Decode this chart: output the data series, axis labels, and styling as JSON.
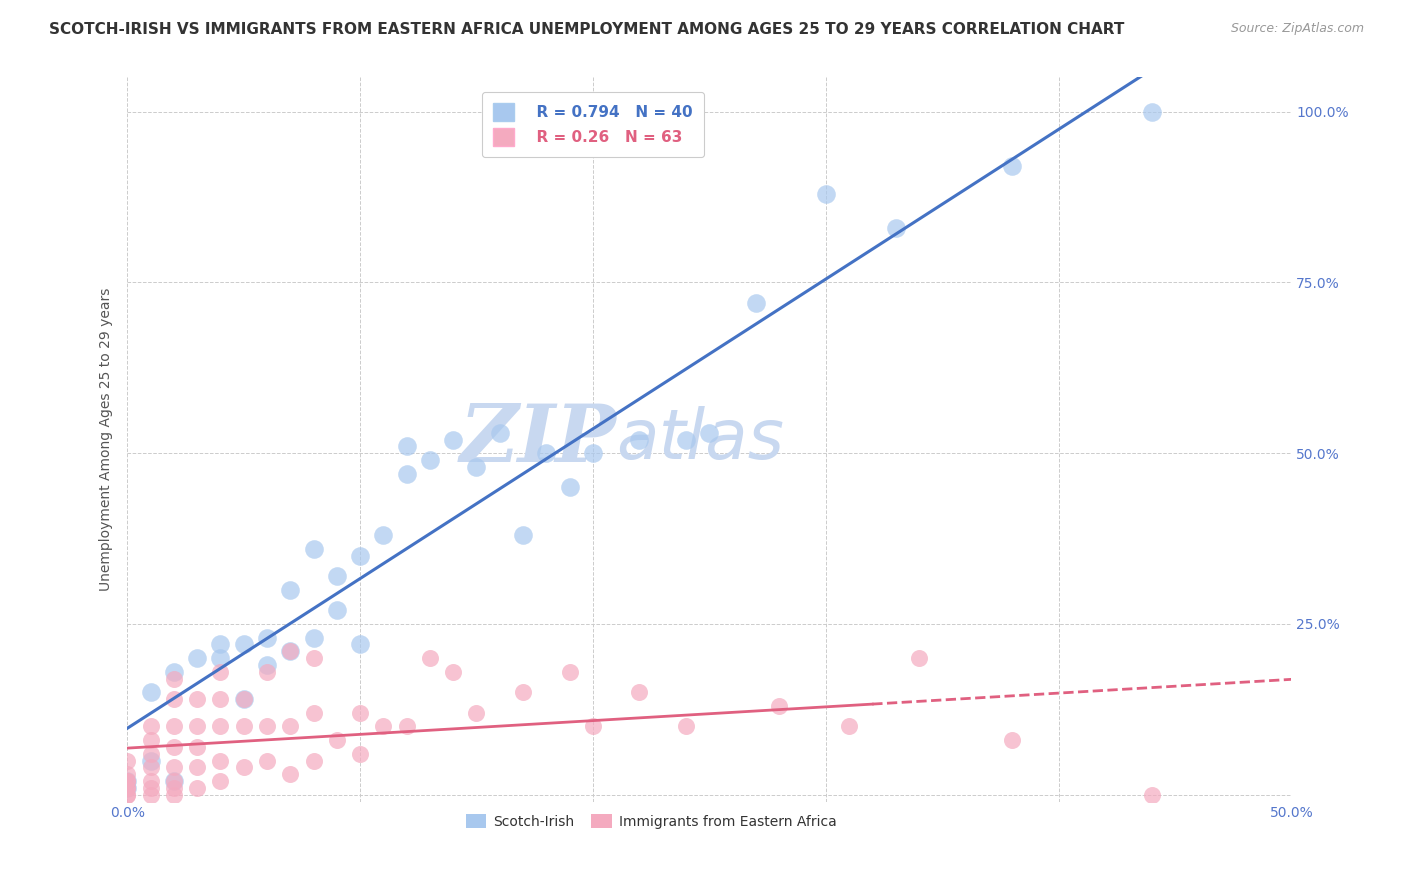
{
  "title": "SCOTCH-IRISH VS IMMIGRANTS FROM EASTERN AFRICA UNEMPLOYMENT AMONG AGES 25 TO 29 YEARS CORRELATION CHART",
  "source": "Source: ZipAtlas.com",
  "ylabel": "Unemployment Among Ages 25 to 29 years",
  "xlim": [
    0.0,
    0.5
  ],
  "ylim": [
    -0.01,
    1.05
  ],
  "xticks": [
    0.0,
    0.1,
    0.2,
    0.3,
    0.4,
    0.5
  ],
  "xticklabels": [
    "0.0%",
    "",
    "",
    "",
    "",
    "50.0%"
  ],
  "yticks": [
    0.0,
    0.25,
    0.5,
    0.75,
    1.0
  ],
  "yticklabels": [
    "",
    "25.0%",
    "50.0%",
    "75.0%",
    "100.0%"
  ],
  "blue_R": 0.794,
  "blue_N": 40,
  "pink_R": 0.26,
  "pink_N": 63,
  "blue_color": "#A8C8EE",
  "pink_color": "#F4AABF",
  "blue_line_color": "#4472C4",
  "pink_line_color": "#E06080",
  "background_color": "#FFFFFF",
  "grid_color": "#CCCCCC",
  "watermark_text": "ZIPatlas",
  "watermark_color": "#C8D8F0",
  "blue_scatter_x": [
    0.0,
    0.0,
    0.01,
    0.01,
    0.02,
    0.02,
    0.03,
    0.04,
    0.04,
    0.05,
    0.05,
    0.06,
    0.06,
    0.07,
    0.07,
    0.08,
    0.08,
    0.09,
    0.09,
    0.1,
    0.1,
    0.11,
    0.12,
    0.12,
    0.13,
    0.14,
    0.15,
    0.16,
    0.17,
    0.18,
    0.19,
    0.2,
    0.22,
    0.24,
    0.25,
    0.27,
    0.3,
    0.33,
    0.38,
    0.44
  ],
  "blue_scatter_y": [
    0.01,
    0.02,
    0.05,
    0.15,
    0.02,
    0.18,
    0.2,
    0.22,
    0.2,
    0.14,
    0.22,
    0.19,
    0.23,
    0.21,
    0.3,
    0.23,
    0.36,
    0.27,
    0.32,
    0.35,
    0.22,
    0.38,
    0.47,
    0.51,
    0.49,
    0.52,
    0.48,
    0.53,
    0.38,
    0.5,
    0.45,
    0.5,
    0.52,
    0.52,
    0.53,
    0.72,
    0.88,
    0.83,
    0.92,
    1.0
  ],
  "pink_scatter_x": [
    0.0,
    0.0,
    0.0,
    0.0,
    0.0,
    0.0,
    0.0,
    0.0,
    0.01,
    0.01,
    0.01,
    0.01,
    0.01,
    0.01,
    0.01,
    0.02,
    0.02,
    0.02,
    0.02,
    0.02,
    0.02,
    0.02,
    0.02,
    0.03,
    0.03,
    0.03,
    0.03,
    0.03,
    0.04,
    0.04,
    0.04,
    0.04,
    0.04,
    0.05,
    0.05,
    0.05,
    0.06,
    0.06,
    0.06,
    0.07,
    0.07,
    0.07,
    0.08,
    0.08,
    0.08,
    0.09,
    0.1,
    0.1,
    0.11,
    0.12,
    0.13,
    0.14,
    0.15,
    0.17,
    0.19,
    0.2,
    0.22,
    0.24,
    0.28,
    0.31,
    0.34,
    0.38,
    0.44
  ],
  "pink_scatter_y": [
    0.0,
    0.0,
    0.01,
    0.01,
    0.02,
    0.02,
    0.03,
    0.05,
    0.0,
    0.01,
    0.02,
    0.04,
    0.06,
    0.08,
    0.1,
    0.0,
    0.01,
    0.02,
    0.04,
    0.07,
    0.1,
    0.14,
    0.17,
    0.01,
    0.04,
    0.07,
    0.1,
    0.14,
    0.02,
    0.05,
    0.1,
    0.14,
    0.18,
    0.04,
    0.1,
    0.14,
    0.05,
    0.1,
    0.18,
    0.03,
    0.1,
    0.21,
    0.05,
    0.12,
    0.2,
    0.08,
    0.06,
    0.12,
    0.1,
    0.1,
    0.2,
    0.18,
    0.12,
    0.15,
    0.18,
    0.1,
    0.15,
    0.1,
    0.13,
    0.1,
    0.2,
    0.08,
    0.0
  ],
  "title_fontsize": 11,
  "axis_label_fontsize": 10,
  "tick_fontsize": 10,
  "legend_fontsize": 11,
  "source_fontsize": 9
}
